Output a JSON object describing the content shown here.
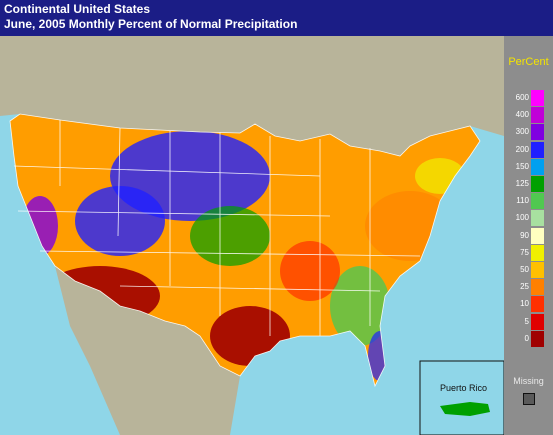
{
  "header": {
    "title": "Continental United States",
    "subtitle": "June, 2005 Monthly Percent of Normal Precipitation"
  },
  "legend": {
    "title": "PerCent",
    "missing_label": "Missing",
    "classes": [
      {
        "label": "600",
        "color": "#ff00ff"
      },
      {
        "label": "400",
        "color": "#c000d8"
      },
      {
        "label": "300",
        "color": "#8000e0"
      },
      {
        "label": "200",
        "color": "#2020ff"
      },
      {
        "label": "150",
        "color": "#00a0f0"
      },
      {
        "label": "125",
        "color": "#00a000"
      },
      {
        "label": "110",
        "color": "#50c850"
      },
      {
        "label": "100",
        "color": "#a8e0a0"
      },
      {
        "label": "90",
        "color": "#ffffc0"
      },
      {
        "label": "75",
        "color": "#f0f000"
      },
      {
        "label": "50",
        "color": "#ffc000"
      },
      {
        "label": "25",
        "color": "#ff8000"
      },
      {
        "label": "10",
        "color": "#ff3000"
      },
      {
        "label": "5",
        "color": "#e00000"
      },
      {
        "label": "0",
        "color": "#a00000"
      }
    ]
  },
  "inset": {
    "label": "Puerto Rico"
  },
  "colors": {
    "ocean": "#8fd6e8",
    "land_outside": "#b8b49a",
    "state_lines": "#ffffff"
  }
}
